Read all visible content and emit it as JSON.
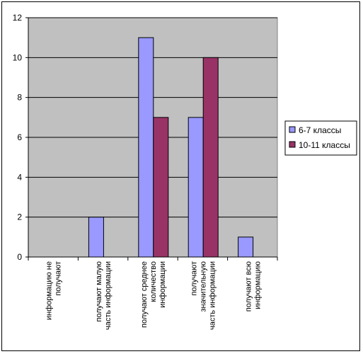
{
  "chart_data": {
    "type": "bar",
    "title": "",
    "xlabel": "",
    "ylabel": "",
    "ylim": [
      0,
      12
    ],
    "yticks": [
      "0",
      "2",
      "4",
      "6",
      "8",
      "10",
      "12"
    ],
    "grid": true,
    "legend_position": "right",
    "plot_background": "#c0c0c0",
    "categories": [
      [
        "информацию не",
        "получают"
      ],
      [
        "получают малую",
        "часть информации"
      ],
      [
        "получают среднее",
        "количество",
        "информации"
      ],
      [
        "получают",
        "значительную",
        "часть информации"
      ],
      [
        "получают всю",
        "информацию"
      ]
    ],
    "series": [
      {
        "name": "6-7 классы",
        "color": "#9999ff",
        "values": [
          0,
          2,
          11,
          7,
          1
        ]
      },
      {
        "name": "10-11 классы",
        "color": "#993366",
        "values": [
          0,
          0,
          7,
          10,
          0
        ]
      }
    ]
  }
}
